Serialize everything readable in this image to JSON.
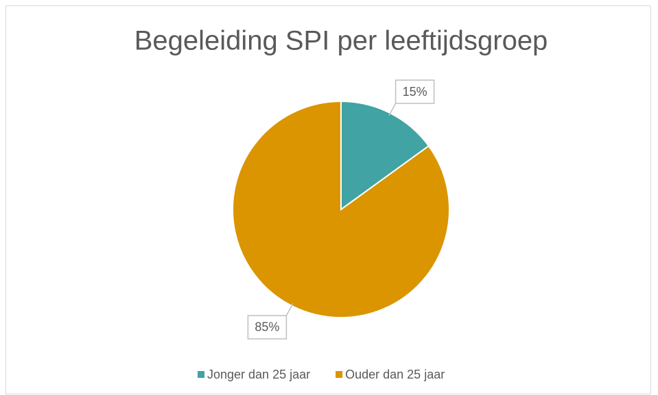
{
  "chart_data": {
    "type": "pie",
    "title": "Begeleiding SPI per leeftijdsgroep",
    "categories": [
      "Jonger dan 25 jaar",
      "Ouder dan 25 jaar"
    ],
    "values": [
      15,
      85
    ],
    "value_labels": [
      "15%",
      "85%"
    ],
    "colors": [
      "#41a3a3",
      "#db9500"
    ],
    "legend": "bottom"
  }
}
